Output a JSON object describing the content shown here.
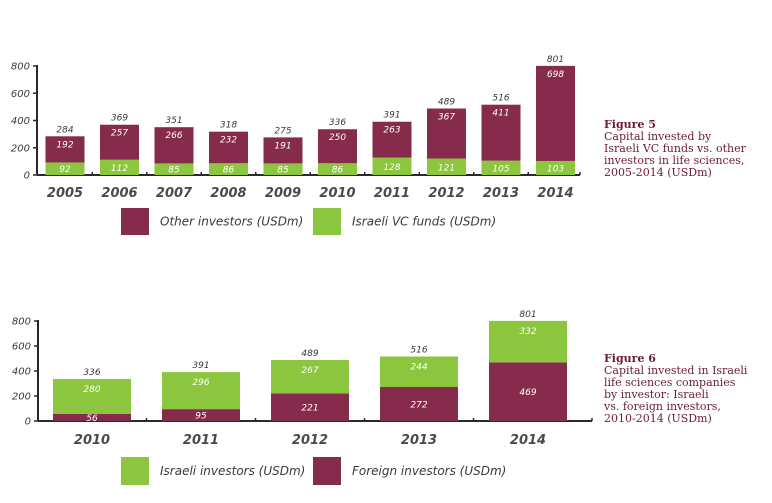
{
  "colors": {
    "maroon": "#862b4c",
    "green": "#8cc63f",
    "axis": "#2a2a2a",
    "caption": "#6a1b3c"
  },
  "figure5": {
    "label": "Figure 5",
    "caption_lines": [
      "Capital invested by",
      "Israeli VC funds vs. other",
      "investors in life sciences,",
      "2005-2014 (USDm)"
    ]
  },
  "figure6": {
    "label": "Figure 6",
    "caption_lines": [
      "Capital invested in Israeli",
      "life sciences companies",
      "by investor: Israeli",
      "vs. foreign investors,",
      "2010-2014 (USDm)"
    ]
  },
  "chart_data": [
    {
      "type": "bar",
      "stacked": true,
      "title": "Figure 5: Capital invested by Israeli VC funds vs. other investors in life sciences, 2005-2014 (USDm)",
      "xlabel": "",
      "ylabel": "",
      "ylim": [
        0,
        800
      ],
      "yticks": [
        0,
        200,
        400,
        600,
        800
      ],
      "grid": false,
      "legend_position": "bottom",
      "categories": [
        "2005",
        "2006",
        "2007",
        "2008",
        "2009",
        "2010",
        "2011",
        "2012",
        "2013",
        "2014"
      ],
      "series": [
        {
          "name": "Israeli VC funds (USDm)",
          "color": "#8cc63f",
          "values": [
            92,
            112,
            85,
            86,
            85,
            86,
            128,
            121,
            105,
            103
          ]
        },
        {
          "name": "Other investors (USDm)",
          "color": "#862b4c",
          "values": [
            192,
            257,
            266,
            232,
            191,
            250,
            263,
            367,
            411,
            698
          ]
        }
      ],
      "totals": [
        284,
        369,
        351,
        318,
        275,
        336,
        391,
        489,
        516,
        801
      ],
      "legend_order": [
        "Other investors (USDm)",
        "Israeli VC funds (USDm)"
      ]
    },
    {
      "type": "bar",
      "stacked": true,
      "title": "Figure 6: Capital invested in Israeli life sciences companies by investor: Israeli vs. foreign investors, 2010-2014 (USDm)",
      "xlabel": "",
      "ylabel": "",
      "ylim": [
        0,
        800
      ],
      "yticks": [
        0,
        200,
        400,
        600,
        800
      ],
      "grid": false,
      "legend_position": "bottom",
      "categories": [
        "2010",
        "2011",
        "2012",
        "2013",
        "2014"
      ],
      "series": [
        {
          "name": "Foreign investors (USDm)",
          "color": "#862b4c",
          "values": [
            56,
            95,
            221,
            272,
            469
          ]
        },
        {
          "name": "Israeli investors (USDm)",
          "color": "#8cc63f",
          "values": [
            280,
            296,
            267,
            244,
            332
          ]
        }
      ],
      "totals": [
        336,
        391,
        489,
        516,
        801
      ],
      "legend_order": [
        "Israeli investors (USDm)",
        "Foreign investors (USDm)"
      ]
    }
  ]
}
